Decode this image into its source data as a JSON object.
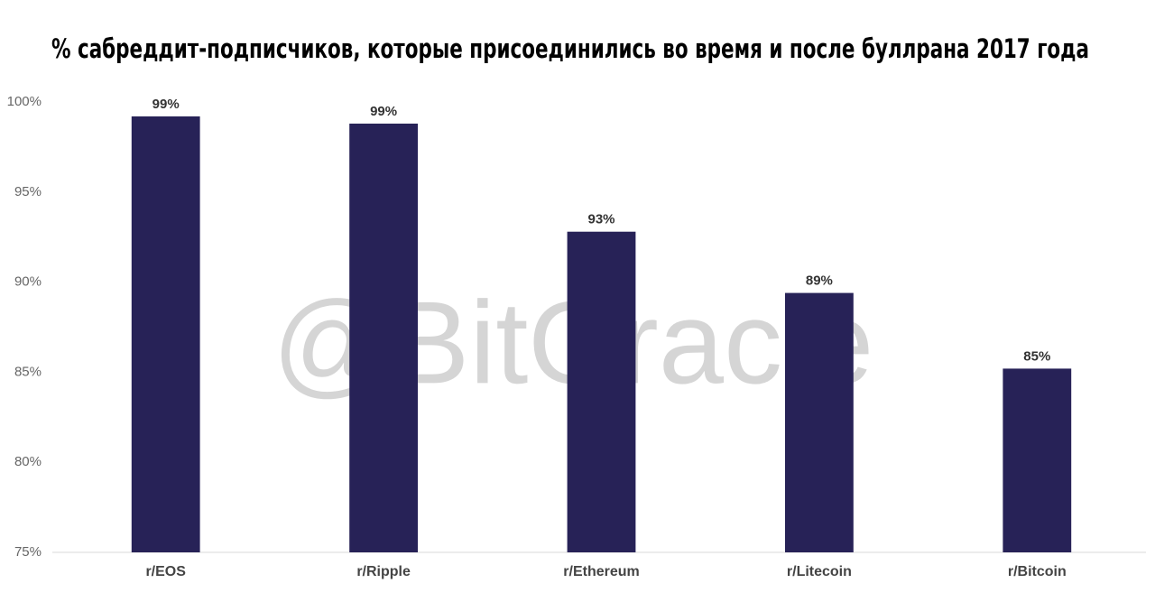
{
  "chart_data": {
    "type": "bar",
    "title": "% сабреддит-подписчиков, которые присоединились во время и после буллрана 2017 года",
    "watermark": "@BitOracle",
    "categories": [
      "r/EOS",
      "r/Ripple",
      "r/Ethereum",
      "r/Litecoin",
      "r/Bitcoin"
    ],
    "values": [
      99.2,
      98.8,
      92.8,
      89.4,
      85.2
    ],
    "value_labels": [
      "99%",
      "99%",
      "93%",
      "89%",
      "85%"
    ],
    "color": "#272257",
    "ylim": [
      75,
      100
    ],
    "yticks": [
      {
        "value": 75,
        "label": "75%"
      },
      {
        "value": 80,
        "label": "80%"
      },
      {
        "value": 85,
        "label": "85%"
      },
      {
        "value": 90,
        "label": "90%"
      },
      {
        "value": 95,
        "label": "95%"
      },
      {
        "value": 100,
        "label": "100%"
      }
    ],
    "grid": false
  }
}
